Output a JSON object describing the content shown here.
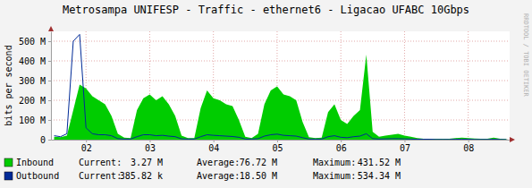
{
  "chart_data": {
    "type": "line",
    "title": "Metrosampa UNIFESP - Traffic - ethernet6 - Ligacao UFABC 10Gbps",
    "y_label": "bits per second",
    "annotations": [
      "RRDTOOL / TOBI OETIKER"
    ],
    "grid": true,
    "legend": "bottom",
    "xlim": [
      1.45,
      8.65
    ],
    "xticks": [
      {
        "value": 2,
        "label": "02"
      },
      {
        "value": 3,
        "label": "03"
      },
      {
        "value": 4,
        "label": "04"
      },
      {
        "value": 5,
        "label": "05"
      },
      {
        "value": 6,
        "label": "06"
      },
      {
        "value": 7,
        "label": "07"
      },
      {
        "value": 8,
        "label": "08"
      }
    ],
    "ylim": [
      0,
      550000000
    ],
    "yticks": [
      0,
      {
        "value": 100000000,
        "label": "100 M"
      },
      {
        "value": 200000000,
        "label": "200 M"
      },
      {
        "value": 300000000,
        "label": "300 M"
      },
      {
        "value": 400000000,
        "label": "400 M"
      },
      {
        "value": 500000000,
        "label": "500 M"
      }
    ],
    "x": [
      1.5,
      1.6,
      1.7,
      1.8,
      1.9,
      2,
      2.1,
      2.2,
      2.3,
      2.4,
      2.5,
      2.6,
      2.7,
      2.8,
      2.9,
      3,
      3.1,
      3.2,
      3.3,
      3.4,
      3.5,
      3.6,
      3.7,
      3.8,
      3.9,
      4,
      4.1,
      4.2,
      4.3,
      4.4,
      4.5,
      4.6,
      4.7,
      4.8,
      4.9,
      5,
      5.1,
      5.2,
      5.3,
      5.4,
      5.5,
      5.6,
      5.7,
      5.8,
      5.9,
      6,
      6.1,
      6.2,
      6.3,
      6.4,
      6.5,
      6.6,
      6.7,
      6.8,
      6.9,
      7,
      7.1,
      7.2,
      7.3,
      7.4,
      7.5,
      7.6,
      7.7,
      7.8,
      7.9,
      8,
      8.1,
      8.2,
      8.3,
      8.4,
      8.5,
      8.6
    ],
    "series": [
      {
        "name": "Inbound",
        "type": "area",
        "color": "#00cc00",
        "stats": [
          {
            "label": "Current:",
            "text": "3.27 M"
          },
          {
            "label": "Average:",
            "text": "76.72 M"
          },
          {
            "label": "Maximum:",
            "text": "431.52 M"
          }
        ],
        "values": [
          15000000,
          12000000,
          20000000,
          150000000,
          280000000,
          260000000,
          220000000,
          200000000,
          180000000,
          120000000,
          30000000,
          10000000,
          8000000,
          150000000,
          210000000,
          230000000,
          200000000,
          220000000,
          180000000,
          120000000,
          20000000,
          8000000,
          8000000,
          160000000,
          250000000,
          210000000,
          200000000,
          180000000,
          170000000,
          100000000,
          15000000,
          8000000,
          30000000,
          180000000,
          250000000,
          270000000,
          230000000,
          220000000,
          200000000,
          90000000,
          12000000,
          8000000,
          10000000,
          140000000,
          180000000,
          100000000,
          80000000,
          120000000,
          150000000,
          431520000,
          40000000,
          15000000,
          20000000,
          25000000,
          30000000,
          20000000,
          15000000,
          8000000,
          5000000,
          5000000,
          4000000,
          4000000,
          5000000,
          8000000,
          10000000,
          8000000,
          6000000,
          4000000,
          5000000,
          10000000,
          4000000,
          3270000
        ]
      },
      {
        "name": "Outbound",
        "type": "line",
        "color": "#002a97",
        "stats": [
          {
            "label": "Current:",
            "text": "385.82 k"
          },
          {
            "label": "Average:",
            "text": "18.50 M"
          },
          {
            "label": "Maximum:",
            "text": "534.34 M"
          }
        ],
        "values": [
          20000000,
          15000000,
          30000000,
          500000000,
          534340000,
          60000000,
          30000000,
          25000000,
          25000000,
          20000000,
          5000000,
          3000000,
          3000000,
          15000000,
          25000000,
          25000000,
          20000000,
          22000000,
          18000000,
          15000000,
          4000000,
          3000000,
          3000000,
          15000000,
          25000000,
          22000000,
          20000000,
          18000000,
          16000000,
          12000000,
          3000000,
          3000000,
          5000000,
          18000000,
          25000000,
          28000000,
          22000000,
          20000000,
          18000000,
          10000000,
          3000000,
          3000000,
          3000000,
          15000000,
          20000000,
          12000000,
          10000000,
          15000000,
          18000000,
          30000000,
          5000000,
          3000000,
          4000000,
          5000000,
          5000000,
          4000000,
          3000000,
          2000000,
          2000000,
          2000000,
          1000000,
          1000000,
          1000000,
          2000000,
          2000000,
          2000000,
          1000000,
          1000000,
          1000000,
          2000000,
          1000000,
          385820
        ]
      }
    ]
  }
}
